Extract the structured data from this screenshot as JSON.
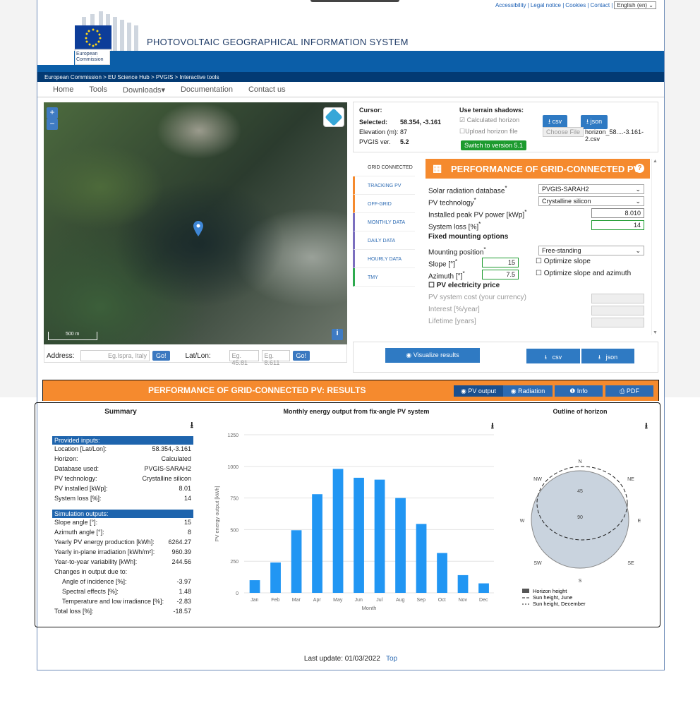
{
  "toplinks": {
    "accessibility": "Accessibility |",
    "legal": "Legal notice |",
    "cookies": "Cookies |",
    "contact": "Contact |",
    "lang": "English (en)"
  },
  "logo": {
    "text1": "European",
    "text2": "Commission"
  },
  "title": "PHOTOVOLTAIC GEOGRAPHICAL INFORMATION SYSTEM",
  "breadcrumb": "European Commission > EU Science Hub > PVGIS > Interactive tools",
  "nav": {
    "home": "Home",
    "tools": "Tools",
    "downloads": "Downloads",
    "documentation": "Documentation",
    "contact": "Contact us"
  },
  "map": {
    "scale": "500 m",
    "info": "i",
    "zoom_in": "+",
    "zoom_out": "−"
  },
  "address": {
    "label": "Address:",
    "placeholder": "Eg.Ispra, Italy",
    "go": "Go!",
    "latlon_label": "Lat/Lon:",
    "lat_placeholder": "Eg. 45.81",
    "lon_placeholder": "Eg. 8.611",
    "go2": "Go!"
  },
  "cursor": {
    "label": "Cursor:",
    "selected_label": "Selected:",
    "selected_value": "58.354, -3.161",
    "elev_label": "Elevation (m):",
    "elev_value": "87",
    "ver_label": "PVGIS ver.",
    "ver_value": "5.2",
    "terrain_label": "Use terrain shadows:",
    "calc_horizon": "Calculated horizon",
    "upload_horizon": "Upload horizon file",
    "switch": "Switch to version 5.1",
    "csv": "csv",
    "json": "json",
    "choose": "Choose File",
    "filename": "horizon_58....-3.161-2.csv"
  },
  "tabs": [
    "GRID CONNECTED",
    "TRACKING PV",
    "OFF-GRID",
    "MONTHLY DATA",
    "DAILY DATA",
    "HOURLY DATA",
    "TMY"
  ],
  "tabcolors": [
    "#dddddd",
    "#f58a2e",
    "#f58a2e",
    "#7b6fbf",
    "#7b6fbf",
    "#7b6fbf",
    "#2eaa4f"
  ],
  "perf": {
    "title": "PERFORMANCE OF GRID-CONNECTED PV",
    "help": "?"
  },
  "form": {
    "db_label": "Solar radiation database",
    "db_value": "PVGIS-SARAH2",
    "tech_label": "PV technology",
    "tech_value": "Crystalline silicon",
    "peak_label": "Installed peak PV power [kWp]",
    "peak_value": "8.010",
    "loss_label": "System loss [%]",
    "loss_value": "14",
    "fixed_label": "Fixed mounting options",
    "mount_label": "Mounting position",
    "mount_value": "Free-standing",
    "slope_label": "Slope [°]",
    "slope_value": "15",
    "opt_slope": "Optimize slope",
    "azimuth_label": "Azimuth [°]",
    "azimuth_value": "7.5",
    "opt_both": "Optimize slope and azimuth",
    "price_label": "PV electricity price",
    "cost_label": "PV system cost (your currency)",
    "interest_label": "Interest [%/year]",
    "life_label": "Lifetime [years]"
  },
  "visualize": {
    "label": "Visualize results",
    "csv": "csv",
    "json": "json"
  },
  "results": {
    "title": "PERFORMANCE OF GRID-CONNECTED PV: RESULTS",
    "pvoutput": "PV output",
    "radiation": "Radiation",
    "info": "Info",
    "pdf": "PDF"
  },
  "summary": {
    "title": "Summary",
    "inputs_head": "Provided inputs:",
    "inputs": [
      [
        "Location [Lat/Lon]:",
        "58.354,-3.161"
      ],
      [
        "Horizon:",
        "Calculated"
      ],
      [
        "Database used:",
        "PVGIS-SARAH2"
      ],
      [
        "PV technology:",
        "Crystalline silicon"
      ],
      [
        "PV installed [kWp]:",
        "8.01"
      ],
      [
        "System loss [%]:",
        "14"
      ]
    ],
    "outputs_head": "Simulation outputs:",
    "outputs": [
      [
        "Slope angle [°]:",
        "15",
        0
      ],
      [
        "Azimuth angle [°]:",
        "8",
        0
      ],
      [
        "Yearly PV energy production [kWh]:",
        "6264.27",
        0
      ],
      [
        "Yearly in-plane irradiation [kWh/m²]:",
        "960.39",
        0
      ],
      [
        "Year-to-year variability [kWh]:",
        "244.56",
        0
      ],
      [
        "Changes in output due to:",
        "",
        0
      ],
      [
        "Angle of incidence [%]:",
        "-3.97",
        1
      ],
      [
        "Spectral effects [%]:",
        "1.48",
        1
      ],
      [
        "Temperature and low irradiance [%]:",
        "-2.83",
        1
      ],
      [
        "Total loss [%]:",
        "-18.57",
        0
      ]
    ]
  },
  "chart_data": {
    "type": "bar",
    "title": "Monthly energy output from fix-angle PV system",
    "xlabel": "Month",
    "ylabel": "PV energy output [kWh]",
    "categories": [
      "Jan",
      "Feb",
      "Mar",
      "Apr",
      "May",
      "Jun",
      "Jul",
      "Aug",
      "Sep",
      "Oct",
      "Nov",
      "Dec"
    ],
    "values": [
      100,
      240,
      495,
      780,
      980,
      910,
      895,
      750,
      545,
      315,
      140,
      75
    ],
    "ylim": [
      0,
      1250
    ],
    "yticks": [
      0,
      250,
      500,
      750,
      1000,
      1250
    ],
    "color": "#2196f3",
    "grid": true
  },
  "horizon": {
    "title": "Outline of horizon",
    "N": "N",
    "NE": "NE",
    "E": "E",
    "SE": "SE",
    "S": "S",
    "SW": "SW",
    "W": "W",
    "NW": "NW",
    "r45": "45",
    "r90": "90",
    "legend1": "Horizon height",
    "legend2": "Sun height, June",
    "legend3": "Sun height, December"
  },
  "footer": {
    "text": "Last update: 01/03/2022",
    "top": "Top"
  }
}
